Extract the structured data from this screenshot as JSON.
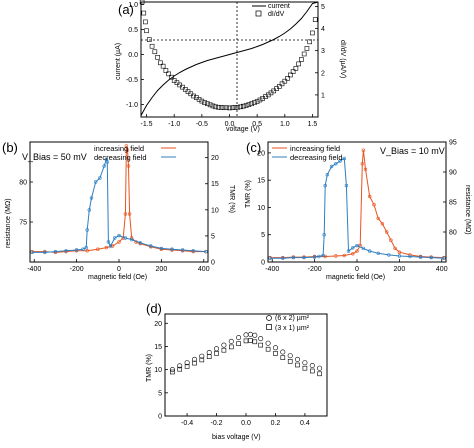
{
  "figure": {
    "panels": {
      "a": "(a)",
      "b": "(b)",
      "c": "(c)",
      "d": "(d)"
    }
  },
  "chart_data": [
    {
      "panel": "a",
      "type": "line",
      "xlabel": "voltage (V)",
      "ylabel": "current (µA)",
      "ylabel_right": "dI/dV (µA/V)",
      "xlim": [
        -1.6,
        1.6
      ],
      "ylim": [
        -1.25,
        1.05
      ],
      "ylim_right": [
        0,
        5.2
      ],
      "x_ticks": [
        "-1.5",
        "-1.0",
        "-0.5",
        "0.0",
        "0.5",
        "1.0",
        "1.5"
      ],
      "y_ticks": [
        "-1.0",
        "-0.5",
        "0.0",
        "0.5",
        "1.0"
      ],
      "y_ticks_right": [
        "1",
        "2",
        "3",
        "4",
        "5"
      ],
      "legend": [
        "current",
        "dI/dV"
      ],
      "legend_position": "top-right",
      "series": [
        {
          "name": "current",
          "axis": "left",
          "style": "line",
          "x": [
            -1.6,
            -1.5,
            -1.4,
            -1.3,
            -1.2,
            -1.1,
            -1.0,
            -0.9,
            -0.8,
            -0.7,
            -0.6,
            -0.5,
            -0.4,
            -0.3,
            -0.2,
            -0.1,
            0.0,
            0.1,
            0.2,
            0.3,
            0.4,
            0.5,
            0.6,
            0.7,
            0.8,
            0.9,
            1.0,
            1.1,
            1.2,
            1.3,
            1.4,
            1.5,
            1.6
          ],
          "y": [
            -1.22,
            -1.02,
            -0.86,
            -0.72,
            -0.61,
            -0.51,
            -0.43,
            -0.36,
            -0.3,
            -0.25,
            -0.2,
            -0.16,
            -0.12,
            -0.09,
            -0.06,
            -0.03,
            0.0,
            0.03,
            0.06,
            0.09,
            0.12,
            0.16,
            0.2,
            0.25,
            0.3,
            0.36,
            0.43,
            0.51,
            0.61,
            0.72,
            0.86,
            1.02,
            1.22
          ]
        },
        {
          "name": "dI/dV",
          "axis": "right",
          "style": "markers",
          "marker": "square-open",
          "x": [
            -1.58,
            -1.55,
            -1.52,
            -1.5,
            -1.45,
            -1.4,
            -1.35,
            -1.3,
            -1.25,
            -1.2,
            -1.15,
            -1.1,
            -1.05,
            -1.0,
            -0.95,
            -0.9,
            -0.85,
            -0.8,
            -0.75,
            -0.7,
            -0.65,
            -0.6,
            -0.55,
            -0.5,
            -0.45,
            -0.4,
            -0.35,
            -0.3,
            -0.25,
            -0.2,
            -0.15,
            -0.1,
            -0.05,
            0.0,
            0.05,
            0.1,
            0.15,
            0.2,
            0.25,
            0.3,
            0.35,
            0.4,
            0.45,
            0.5,
            0.55,
            0.6,
            0.65,
            0.7,
            0.75,
            0.8,
            0.85,
            0.9,
            0.95,
            1.0,
            1.05,
            1.1,
            1.15,
            1.2,
            1.25,
            1.3,
            1.35,
            1.4,
            1.45,
            1.5,
            1.55
          ],
          "y": [
            5.2,
            4.7,
            4.3,
            3.9,
            3.5,
            3.2,
            2.95,
            2.7,
            2.45,
            2.3,
            2.1,
            1.95,
            1.8,
            1.65,
            1.55,
            1.45,
            1.35,
            1.25,
            1.15,
            1.05,
            0.95,
            0.88,
            0.8,
            0.72,
            0.65,
            0.6,
            0.55,
            0.5,
            0.46,
            0.44,
            0.43,
            0.42,
            0.42,
            0.41,
            0.42,
            0.43,
            0.44,
            0.46,
            0.49,
            0.52,
            0.56,
            0.6,
            0.65,
            0.7,
            0.77,
            0.84,
            0.92,
            1.0,
            1.09,
            1.18,
            1.28,
            1.38,
            1.5,
            1.62,
            1.75,
            1.9,
            2.05,
            2.2,
            2.4,
            2.6,
            2.85,
            3.1,
            3.4,
            3.8,
            4.4
          ]
        }
      ]
    },
    {
      "panel": "b",
      "type": "line",
      "annotation": "V_Bias = 50 mV",
      "xlabel": "magnetic field (Oe)",
      "ylabel": "resistance (MΩ)",
      "ylabel_right": "TMR (%)",
      "xlim": [
        -420,
        420
      ],
      "ylim": [
        70,
        85
      ],
      "ylim_right": [
        0,
        23
      ],
      "x_ticks": [
        "-400",
        "-200",
        "0",
        "200",
        "400"
      ],
      "y_ticks": [
        "75",
        "80"
      ],
      "y_ticks_right": [
        "0",
        "5",
        "10",
        "15",
        "20"
      ],
      "legend": [
        "increasing field",
        "decreasing field"
      ],
      "legend_position": "top-center",
      "series": [
        {
          "name": "increasing field",
          "color": "#e8531f",
          "x": [
            -410,
            -350,
            -300,
            -250,
            -200,
            -150,
            -100,
            -60,
            -30,
            0,
            20,
            30,
            35,
            40,
            45,
            50,
            60,
            80,
            100,
            150,
            200,
            250,
            300,
            350,
            410
          ],
          "y": [
            71.3,
            71.3,
            71.2,
            71.3,
            71.4,
            71.4,
            71.6,
            71.8,
            72.0,
            72.5,
            73.0,
            76.0,
            84.5,
            84.0,
            82.0,
            76.0,
            73.0,
            72.5,
            72.3,
            71.9,
            71.6,
            71.5,
            71.4,
            71.3,
            71.3
          ]
        },
        {
          "name": "decreasing field",
          "color": "#2d7fc1",
          "x": [
            410,
            350,
            300,
            250,
            200,
            150,
            100,
            60,
            30,
            0,
            -20,
            -40,
            -50,
            -55,
            -60,
            -70,
            -90,
            -110,
            -130,
            -140,
            -150,
            -155,
            -170,
            -200,
            -250,
            -300,
            -350,
            -410
          ],
          "y": [
            71.3,
            71.4,
            71.5,
            71.6,
            71.7,
            72.0,
            72.4,
            72.8,
            73.0,
            73.3,
            73.0,
            72.0,
            72.5,
            82.5,
            82.8,
            82.0,
            80.5,
            80.0,
            78.0,
            76.5,
            74.0,
            71.8,
            71.6,
            71.5,
            71.4,
            71.3,
            71.2,
            71.2
          ]
        }
      ]
    },
    {
      "panel": "c",
      "type": "line",
      "annotation": "V_Bias = 10 mV",
      "xlabel": "magnetic field (Oe)",
      "ylabel": "TMR (%)",
      "ylabel_right": "resistance (MΩ)",
      "xlim": [
        -420,
        420
      ],
      "ylim": [
        0,
        22
      ],
      "ylim_right": [
        75,
        95
      ],
      "x_ticks": [
        "-400",
        "-200",
        "0",
        "200",
        "400"
      ],
      "y_ticks": [
        "0",
        "5",
        "10",
        "15",
        "20"
      ],
      "y_ticks_right": [
        "80",
        "85",
        "90",
        "95"
      ],
      "legend": [
        "increasing field",
        "decreasing field"
      ],
      "legend_position": "top-left",
      "series": [
        {
          "name": "increasing field",
          "color": "#e8531f",
          "x": [
            -410,
            -350,
            -300,
            -250,
            -200,
            -150,
            -100,
            -60,
            -20,
            0,
            15,
            25,
            30,
            40,
            60,
            80,
            100,
            120,
            140,
            160,
            180,
            200,
            250,
            300,
            350,
            410
          ],
          "y": [
            0.8,
            0.8,
            0.9,
            0.9,
            1.0,
            1.0,
            1.1,
            1.2,
            1.5,
            2.0,
            3.0,
            18.0,
            20.5,
            17.0,
            12.0,
            10.5,
            8.0,
            7.0,
            5.5,
            4.0,
            2.5,
            1.8,
            1.3,
            1.0,
            0.9,
            0.8
          ]
        },
        {
          "name": "decreasing field",
          "color": "#2d7fc1",
          "x": [
            410,
            350,
            300,
            250,
            200,
            150,
            100,
            60,
            30,
            0,
            -20,
            -40,
            -50,
            -60,
            -80,
            -100,
            -120,
            -140,
            -150,
            -155,
            -160,
            -180,
            -200,
            -250,
            -300,
            -350,
            -410
          ],
          "y": [
            0.7,
            0.8,
            0.9,
            1.0,
            1.1,
            1.3,
            1.6,
            2.0,
            2.5,
            3.0,
            2.6,
            2.0,
            14.0,
            19.0,
            18.5,
            18.0,
            17.5,
            16.0,
            14.0,
            5.0,
            1.2,
            1.0,
            0.9,
            0.8,
            0.8,
            0.7,
            0.7
          ]
        }
      ]
    },
    {
      "panel": "d",
      "type": "scatter",
      "xlabel": "bias voltage (V)",
      "ylabel": "TMR (%)",
      "xlim": [
        -0.55,
        0.55
      ],
      "ylim": [
        0,
        22
      ],
      "x_ticks": [
        "-0.4",
        "-0.2",
        "0.0",
        "0.2",
        "0.4"
      ],
      "y_ticks": [
        "0",
        "5",
        "10",
        "15",
        "20"
      ],
      "legend": [
        "(6 x 2) µm²",
        "(3 x 1) µm²"
      ],
      "legend_position": "top-right",
      "series": [
        {
          "name": "(6 x 2) µm²",
          "marker": "circle-open",
          "x": [
            -0.5,
            -0.45,
            -0.4,
            -0.35,
            -0.3,
            -0.25,
            -0.2,
            -0.15,
            -0.1,
            -0.05,
            0.0,
            0.03,
            0.06,
            0.1,
            0.15,
            0.2,
            0.25,
            0.3,
            0.35,
            0.4,
            0.45,
            0.5
          ],
          "y": [
            10.0,
            10.8,
            11.5,
            12.2,
            12.9,
            13.7,
            14.5,
            15.3,
            16.1,
            16.9,
            17.5,
            17.6,
            17.4,
            16.7,
            15.7,
            14.7,
            13.8,
            13.0,
            12.2,
            11.5,
            10.9,
            10.3
          ]
        },
        {
          "name": "(3 x 1) µm²",
          "marker": "square-open",
          "x": [
            -0.5,
            -0.45,
            -0.4,
            -0.35,
            -0.3,
            -0.25,
            -0.2,
            -0.15,
            -0.1,
            -0.05,
            0.0,
            0.03,
            0.06,
            0.1,
            0.15,
            0.2,
            0.25,
            0.3,
            0.35,
            0.4,
            0.45,
            0.5
          ],
          "y": [
            9.5,
            10.1,
            10.7,
            11.4,
            12.1,
            12.8,
            13.5,
            14.2,
            14.9,
            15.6,
            16.2,
            16.3,
            16.0,
            15.3,
            14.4,
            13.5,
            12.6,
            11.8,
            11.0,
            10.3,
            9.7,
            9.1
          ]
        }
      ]
    }
  ]
}
